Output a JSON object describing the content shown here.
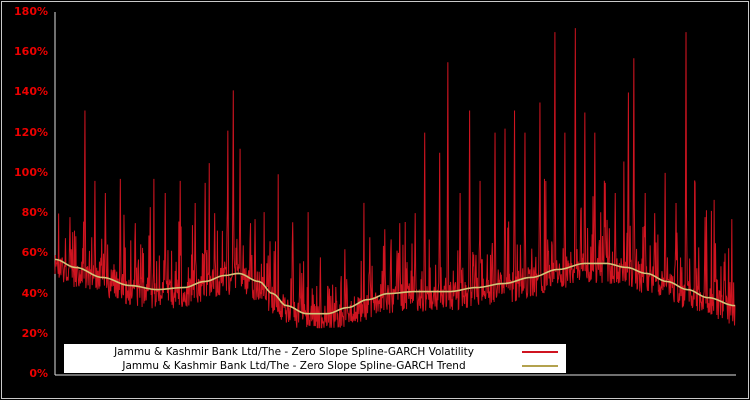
{
  "chart_data": {
    "type": "line",
    "title": "",
    "background_color": "#000000",
    "plot": {
      "x_min_frac": 0,
      "x_max_frac": 1,
      "ylim": [
        0,
        180
      ],
      "grid": false,
      "axis_line_color": "#e0e0e0"
    },
    "y_axis": {
      "ticks": [
        0,
        20,
        40,
        60,
        80,
        100,
        120,
        140,
        160,
        180
      ],
      "tick_labels": [
        "0%",
        "20%",
        "40%",
        "60%",
        "80%",
        "100%",
        "120%",
        "140%",
        "160%",
        "180%"
      ],
      "tick_color": "#ee0000"
    },
    "x_axis": {
      "tick_labels": []
    },
    "legend": {
      "position": "bottom-left",
      "background": "#ffffff",
      "entries": [
        {
          "label": "Jammu & Kashmir Bank Ltd/The - Zero Slope Spline-GARCH Volatility",
          "color": "#cf1420"
        },
        {
          "label": "Jammu & Kashmir Bank Ltd/The - Zero Slope Spline-GARCH Trend",
          "color": "#b3a24e"
        }
      ]
    },
    "series": [
      {
        "name": "Jammu & Kashmir Bank Ltd/The - Zero Slope Spline-GARCH Volatility",
        "type": "noisy-line",
        "color": "#cf1420",
        "band_center": "trend",
        "band_offset": -10,
        "band_width": 15,
        "noise_seed": 1337,
        "points_count": 1500,
        "min_value": 23,
        "max_value": 176,
        "spikes": [
          [
            0.022,
            78
          ],
          [
            0.044,
            131
          ],
          [
            0.059,
            96
          ],
          [
            0.074,
            90
          ],
          [
            0.096,
            97
          ],
          [
            0.118,
            75
          ],
          [
            0.14,
            83
          ],
          [
            0.162,
            90
          ],
          [
            0.184,
            96
          ],
          [
            0.206,
            85
          ],
          [
            0.221,
            95
          ],
          [
            0.235,
            80
          ],
          [
            0.254,
            121
          ],
          [
            0.262,
            141
          ],
          [
            0.272,
            112
          ],
          [
            0.294,
            77
          ],
          [
            0.316,
            66
          ],
          [
            0.36,
            55
          ],
          [
            0.39,
            58
          ],
          [
            0.426,
            62
          ],
          [
            0.463,
            68
          ],
          [
            0.485,
            72
          ],
          [
            0.507,
            75
          ],
          [
            0.53,
            80
          ],
          [
            0.544,
            120
          ],
          [
            0.566,
            110
          ],
          [
            0.578,
            155
          ],
          [
            0.596,
            90
          ],
          [
            0.61,
            131
          ],
          [
            0.625,
            96
          ],
          [
            0.647,
            120
          ],
          [
            0.662,
            122
          ],
          [
            0.676,
            131
          ],
          [
            0.691,
            120
          ],
          [
            0.713,
            135
          ],
          [
            0.735,
            170
          ],
          [
            0.75,
            120
          ],
          [
            0.765,
            172
          ],
          [
            0.779,
            130
          ],
          [
            0.794,
            120
          ],
          [
            0.809,
            95
          ],
          [
            0.824,
            90
          ],
          [
            0.843,
            140
          ],
          [
            0.851,
            157
          ],
          [
            0.868,
            90
          ],
          [
            0.882,
            80
          ],
          [
            0.897,
            100
          ],
          [
            0.913,
            85
          ],
          [
            0.928,
            170
          ],
          [
            0.941,
            95
          ],
          [
            0.956,
            78
          ],
          [
            0.971,
            65
          ],
          [
            0.985,
            60
          ]
        ]
      },
      {
        "name": "Jammu & Kashmir Bank Ltd/The - Zero Slope Spline-GARCH Trend",
        "type": "smooth-line",
        "color": "#d3c578",
        "points": [
          [
            0.0,
            57
          ],
          [
            0.03,
            53
          ],
          [
            0.07,
            48
          ],
          [
            0.11,
            44
          ],
          [
            0.15,
            42
          ],
          [
            0.19,
            43
          ],
          [
            0.22,
            46
          ],
          [
            0.25,
            49
          ],
          [
            0.27,
            50
          ],
          [
            0.3,
            46
          ],
          [
            0.32,
            40
          ],
          [
            0.34,
            34
          ],
          [
            0.37,
            30
          ],
          [
            0.4,
            30
          ],
          [
            0.43,
            33
          ],
          [
            0.46,
            37
          ],
          [
            0.49,
            40
          ],
          [
            0.53,
            41
          ],
          [
            0.58,
            41
          ],
          [
            0.62,
            43
          ],
          [
            0.66,
            45
          ],
          [
            0.7,
            48
          ],
          [
            0.74,
            52
          ],
          [
            0.78,
            55
          ],
          [
            0.81,
            55
          ],
          [
            0.84,
            53
          ],
          [
            0.87,
            50
          ],
          [
            0.9,
            46
          ],
          [
            0.93,
            42
          ],
          [
            0.96,
            38
          ],
          [
            1.0,
            34
          ]
        ]
      }
    ]
  }
}
